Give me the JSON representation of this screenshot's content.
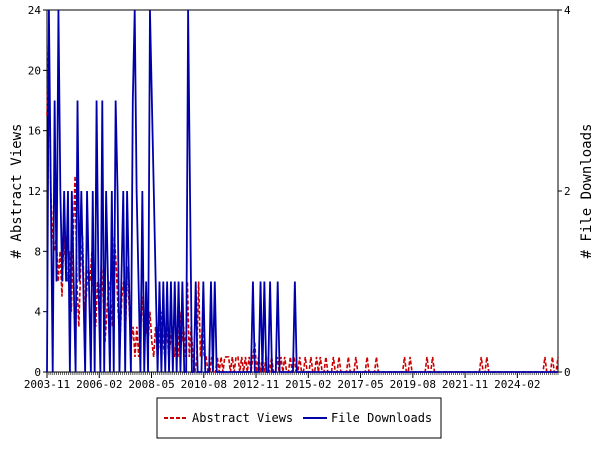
{
  "chart_data": {
    "type": "line",
    "ylabel_left": "# Abstract Views",
    "ylabel_right": "# File Downloads",
    "x_tick_labels": [
      "2003-11",
      "2006-02",
      "2008-05",
      "2010-08",
      "2012-11",
      "2015-02",
      "2017-05",
      "2019-08",
      "2021-11",
      "2024-02"
    ],
    "y_left_ticks": [
      "0",
      "4",
      "8",
      "12",
      "16",
      "20",
      "24"
    ],
    "y_right_ticks": [
      "0",
      "2",
      "4"
    ],
    "y_left_range": [
      0,
      24
    ],
    "y_right_range": [
      0,
      4
    ],
    "x_start": "2003-11",
    "x_end": "2025-11",
    "legend_position": "bottom-center",
    "series": [
      {
        "name": "Abstract Views",
        "color": "#cc0000",
        "style": "dashed",
        "axis": "left",
        "values": [
          17,
          22,
          12,
          9,
          8,
          9,
          6,
          8,
          5,
          9,
          7,
          6,
          8,
          4,
          9,
          13,
          6,
          3,
          7,
          9,
          4,
          5,
          7,
          6,
          8,
          5,
          3,
          6,
          4,
          7,
          5,
          2,
          4,
          6,
          5,
          3,
          9,
          7,
          4,
          2,
          5,
          6,
          3,
          7,
          4,
          2,
          3,
          1,
          3,
          1,
          3,
          5,
          2,
          3,
          2,
          4,
          2,
          1,
          3,
          1,
          2,
          4,
          2,
          1,
          3,
          1,
          2,
          3,
          1,
          2,
          1,
          4,
          2,
          3,
          1,
          6,
          1,
          3,
          1,
          0,
          1,
          6,
          1,
          3,
          1,
          1,
          0,
          0,
          1,
          0,
          0,
          1,
          0,
          1,
          0,
          1,
          1,
          1,
          0,
          1,
          0,
          1,
          1,
          0,
          1,
          0,
          1,
          0,
          1,
          0,
          1,
          2,
          0,
          1,
          0,
          1,
          0,
          1,
          1,
          0,
          1,
          0,
          0,
          1,
          0,
          1,
          0,
          1,
          0,
          0,
          1,
          0,
          1,
          0,
          0,
          1,
          0,
          0,
          1,
          0,
          0,
          1,
          0,
          0,
          1,
          0,
          1,
          0,
          0,
          1,
          0,
          0,
          0,
          1,
          0,
          0,
          1,
          0,
          0,
          0,
          0,
          1,
          0,
          0,
          0,
          1,
          0,
          0,
          0,
          0,
          0,
          1,
          0,
          0,
          0,
          0,
          1,
          0,
          0,
          0,
          0,
          0,
          0,
          0,
          0,
          0,
          0,
          0,
          0,
          0,
          0,
          1,
          0,
          0,
          1,
          0,
          0,
          0,
          0,
          0,
          0,
          0,
          0,
          1,
          0,
          0,
          1,
          0,
          0,
          0,
          0,
          0,
          0,
          0,
          0,
          0,
          0,
          0,
          0,
          0,
          0,
          0,
          0,
          0,
          0,
          0,
          0,
          0,
          0,
          0,
          0,
          0,
          1,
          0,
          0,
          1,
          0,
          0,
          0,
          0,
          0,
          0,
          0,
          0,
          0,
          0,
          0,
          0,
          0,
          0,
          0,
          0,
          0,
          0,
          0,
          0,
          0,
          0,
          0,
          0,
          0,
          0,
          0,
          0,
          0,
          0,
          1,
          0,
          0,
          0,
          1,
          0,
          0,
          1
        ]
      },
      {
        "name": "File Downloads",
        "color": "#0000aa",
        "style": "solid",
        "axis": "right",
        "values": [
          0,
          4,
          2,
          0,
          3,
          1,
          4,
          2,
          1,
          2,
          1,
          2,
          0,
          2,
          1,
          0,
          3,
          1,
          2,
          1,
          0,
          2,
          1,
          0,
          2,
          0,
          3,
          1,
          0,
          3,
          0,
          2,
          1,
          0,
          2,
          0,
          3,
          2,
          0,
          1,
          2,
          0,
          2,
          1,
          0,
          3,
          4,
          2,
          1,
          0,
          2,
          0,
          1,
          0,
          4,
          3,
          2,
          1,
          0,
          1,
          0,
          1,
          0,
          1,
          0,
          1,
          0,
          1,
          0,
          1,
          0,
          1,
          0,
          0,
          4,
          2,
          0,
          0,
          1,
          0,
          0,
          0,
          1,
          0,
          0,
          0,
          1,
          0,
          1,
          0,
          0,
          0,
          0,
          0,
          0,
          0,
          0,
          0,
          0,
          0,
          0,
          0,
          0,
          0,
          0,
          0,
          0,
          0,
          1,
          0,
          0,
          0,
          1,
          0,
          1,
          0,
          0,
          1,
          0,
          0,
          0,
          1,
          0,
          0,
          0,
          0,
          0,
          0,
          0,
          0,
          1,
          0,
          0,
          0,
          0,
          0,
          0,
          0,
          0,
          0,
          0,
          0,
          0,
          0,
          0,
          0,
          0,
          0,
          0,
          0,
          0,
          0,
          0,
          0,
          0,
          0,
          0,
          0,
          0,
          0,
          0,
          0,
          0,
          0,
          0,
          0,
          0,
          0,
          0,
          0,
          0,
          0,
          0,
          0,
          0,
          0,
          0,
          0,
          0,
          0,
          0,
          0,
          0,
          0,
          0,
          0,
          0,
          0,
          0,
          0,
          0,
          0,
          0,
          0,
          0,
          0,
          0,
          0,
          0,
          0,
          0,
          0,
          0,
          0,
          0,
          0,
          0,
          0,
          0,
          0,
          0,
          0,
          0,
          0,
          0,
          0,
          0,
          0,
          0,
          0,
          0,
          0,
          0,
          0,
          0,
          0,
          0,
          0,
          0,
          0,
          0,
          0,
          0,
          0,
          0,
          0,
          0,
          0,
          0,
          0,
          0,
          0,
          0,
          0,
          0,
          0,
          0,
          0,
          0,
          0,
          0,
          0,
          0,
          0,
          0,
          0,
          0,
          0,
          0,
          0,
          0,
          0,
          0,
          0,
          0,
          0,
          0,
          0,
          0
        ]
      }
    ],
    "grid": false
  }
}
